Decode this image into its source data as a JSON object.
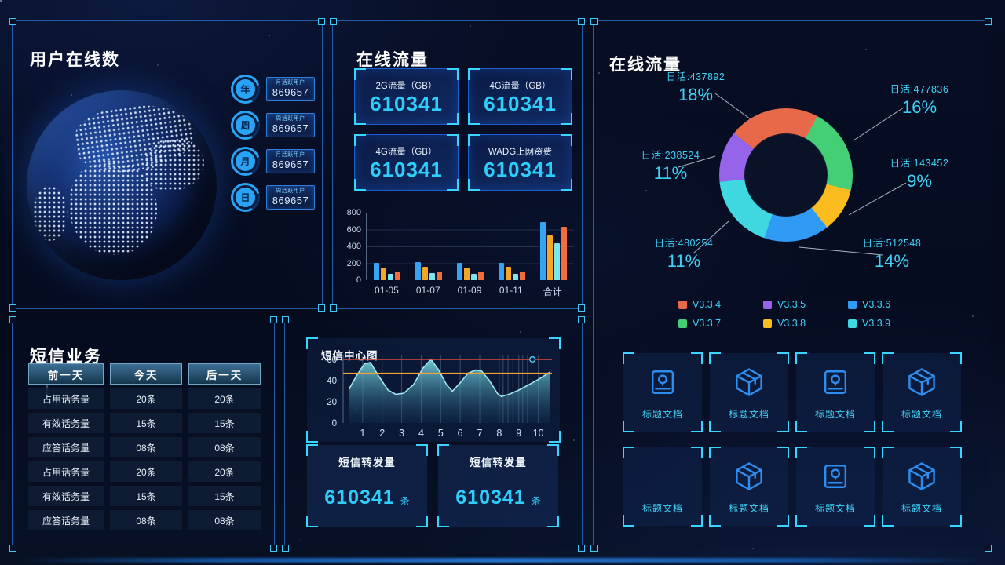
{
  "users": {
    "title": "用户在线数",
    "badges": [
      {
        "period": "年",
        "label": "月活跃用户",
        "value": "869657"
      },
      {
        "period": "周",
        "label": "周活跃用户",
        "value": "869657"
      },
      {
        "period": "月",
        "label": "月活跃用户",
        "value": "869657"
      },
      {
        "period": "日",
        "label": "周活跃用户",
        "value": "869657"
      }
    ]
  },
  "traffic": {
    "title": "在线流量",
    "stats": [
      {
        "label": "2G流量（GB）",
        "value": "610341"
      },
      {
        "label": "4G流量（GB）",
        "value": "610341"
      },
      {
        "label": "4G流量（GB）",
        "value": "610341"
      },
      {
        "label": "WADG上网资费",
        "value": "610341"
      }
    ]
  },
  "donut_panel": {
    "title": "在线流量"
  },
  "docs": {
    "tiles": [
      {
        "icon": "archive",
        "label": "标题文档"
      },
      {
        "icon": "package",
        "label": "标题文档"
      },
      {
        "icon": "archive",
        "label": "标题文档"
      },
      {
        "icon": "package",
        "label": "标题文档"
      },
      {
        "icon": "none",
        "label": "标题文档"
      },
      {
        "icon": "package",
        "label": "标题文档"
      },
      {
        "icon": "archive",
        "label": "标题文档"
      },
      {
        "icon": "package",
        "label": "标题文档"
      }
    ]
  },
  "sms": {
    "title": "短信业务",
    "table": {
      "headers": [
        "前一天",
        "今天",
        "后一天"
      ],
      "rows": [
        [
          "占用话务量",
          "20条",
          "20条"
        ],
        [
          "有效话务量",
          "15条",
          "15条"
        ],
        [
          "应答话务量",
          "08条",
          "08条"
        ],
        [
          "占用话务量",
          "20条",
          "20条"
        ],
        [
          "有效话务量",
          "15条",
          "15条"
        ],
        [
          "应答话务量",
          "08条",
          "08条"
        ]
      ]
    }
  },
  "sms_center": {
    "chart_title": "短信中心图",
    "transfer_cards": [
      {
        "title": "短信转发量",
        "value": "610341",
        "unit": "条"
      },
      {
        "title": "短信转发量",
        "value": "610341",
        "unit": "条"
      }
    ]
  },
  "colors": {
    "accent_cyan": "#2fcdfa",
    "panel_border": "#2a6abc",
    "bracket_cyan": "#38d6ff",
    "icon_blue": "#2e8df0"
  },
  "chart_data": [
    {
      "id": "traffic-bars",
      "type": "bar",
      "categories": [
        "01-05",
        "01-07",
        "01-09",
        "01-11",
        "合计"
      ],
      "series": [
        {
          "color": "#36a3f3",
          "values": [
            205,
            210,
            205,
            205,
            690
          ]
        },
        {
          "color": "#f5a623",
          "values": [
            148,
            155,
            150,
            155,
            530
          ]
        },
        {
          "color": "#7ce5f2",
          "values": [
            78,
            80,
            70,
            78,
            440
          ]
        },
        {
          "color": "#f26d3d",
          "values": [
            100,
            103,
            98,
            103,
            630
          ]
        }
      ],
      "ylim": [
        0,
        800
      ],
      "yticks": [
        0,
        200,
        400,
        600,
        800
      ],
      "grid": true
    },
    {
      "id": "version-donut",
      "type": "pie",
      "title": "在线流量",
      "start_deg": -51,
      "slices": [
        {
          "label": "日活:437892",
          "percent": "18%",
          "color": "#e8684a",
          "span_deg": 79
        },
        {
          "label": "日活:477836",
          "percent": "16%",
          "color": "#44cf77",
          "span_deg": 75
        },
        {
          "label": "日活:143452",
          "percent": "9%",
          "color": "#fbbc1f",
          "span_deg": 39
        },
        {
          "label": "日活:512548",
          "percent": "14%",
          "color": "#2f9bf4",
          "span_deg": 57
        },
        {
          "label": "日活:480254",
          "percent": "11%",
          "color": "#3fd8e0",
          "span_deg": 65
        },
        {
          "label": "日活:238524",
          "percent": "11%",
          "color": "#9664e8",
          "span_deg": 45
        }
      ],
      "legend": [
        {
          "label": "V3.3.4",
          "color": "#e8684a"
        },
        {
          "label": "V3.3.5",
          "color": "#9664e8"
        },
        {
          "label": "V3.3.6",
          "color": "#2f9bf4"
        },
        {
          "label": "V3.3.7",
          "color": "#44cf77"
        },
        {
          "label": "V3.3.8",
          "color": "#fbbc1f"
        },
        {
          "label": "V3.3.9",
          "color": "#3fd8e0"
        }
      ],
      "legend_position": "bottom"
    },
    {
      "id": "sms-line",
      "type": "area",
      "title": "短信中心图",
      "x": [
        0.3,
        0.7,
        1.1,
        1.4,
        1.8,
        2.3,
        2.7,
        3.1,
        3.6,
        4.1,
        4.5,
        4.9,
        5.3,
        5.6,
        6.0,
        6.4,
        6.8,
        7.1,
        7.5,
        7.9,
        8.1,
        8.5,
        9.0,
        9.5,
        10.0,
        10.6
      ],
      "y": [
        32,
        45,
        56,
        57,
        45,
        31,
        27,
        28,
        36,
        52,
        60,
        50,
        36,
        30,
        38,
        47,
        50,
        49,
        40,
        28,
        25,
        27,
        31,
        36,
        41,
        48
      ],
      "xticks": [
        1,
        2,
        3,
        4,
        5,
        6,
        7,
        8,
        9,
        10
      ],
      "extra_gridlines_x": [
        8.2,
        8.45,
        8.7,
        9.2,
        9.45
      ],
      "yticks": [
        0,
        20,
        40,
        60
      ],
      "ylim": [
        0,
        65
      ],
      "xlim": [
        0,
        10.7
      ],
      "thresholds": [
        {
          "value": 60,
          "color": "#e04938"
        },
        {
          "value": 47,
          "color": "#f0a23c"
        }
      ],
      "marker": {
        "x": 9.7,
        "y": 60
      },
      "line_color": "#9fe8f0",
      "fill_from": "#7adbe8",
      "fill_to": "#123a5e"
    }
  ]
}
